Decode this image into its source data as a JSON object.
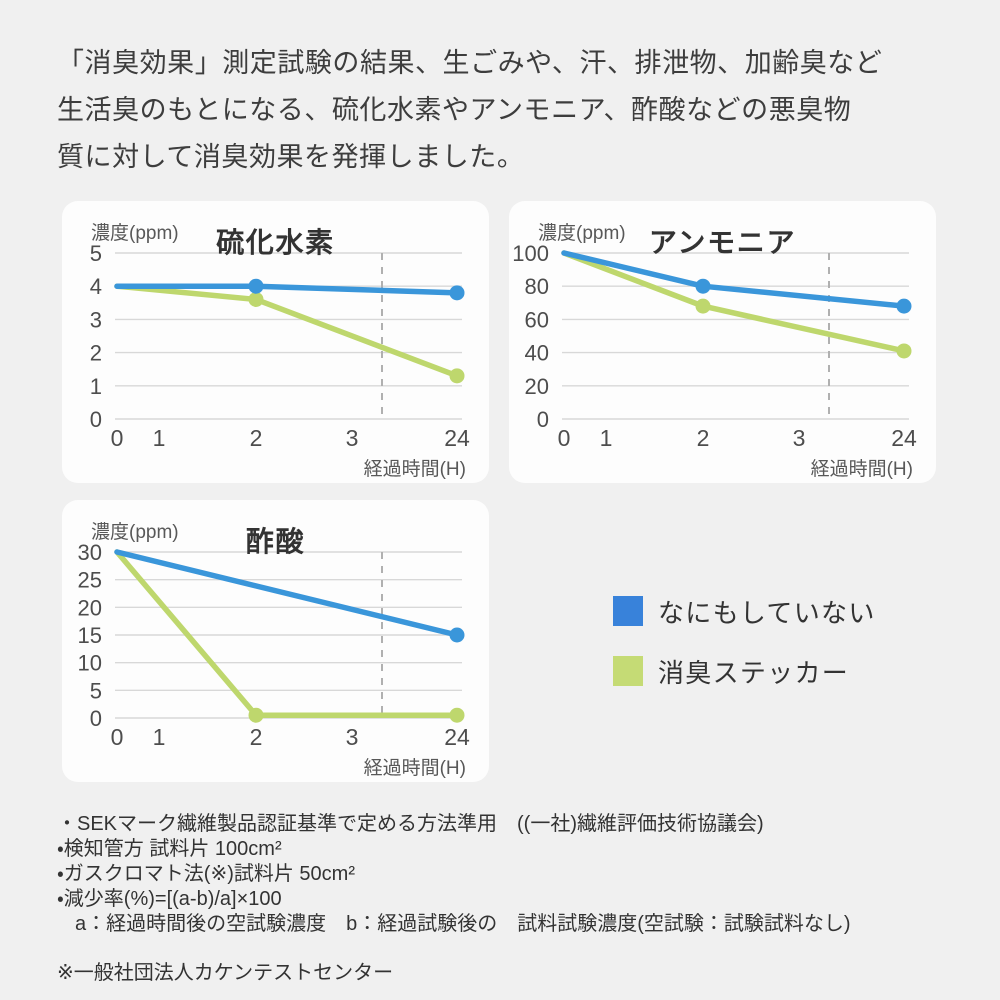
{
  "intro": {
    "lines": [
      "「消臭効果」測定試験の結果、生ごみや、汗、排泄物、加齢臭など",
      "生活臭のもとになる、硫化水素やアンモニア、酢酸などの悪臭物",
      "質に対して消臭効果を発揮しました。"
    ]
  },
  "colors": {
    "page_bg": "#f0f0f0",
    "card_bg": "#fdfdfd",
    "grid": "#d8d8d8",
    "axis_break_dash": "#b0b0b0",
    "axis_text": "#4d4d4d",
    "title_text": "#333333",
    "blue": "#3a96da",
    "green": "#bed76d"
  },
  "chart_data": [
    {
      "type": "line",
      "title": "硫化水素",
      "ylabel": "濃度(ppm)",
      "xlabel": "経過時間(H)",
      "x_tick_labels": [
        "0",
        "1",
        "2",
        "3",
        "24"
      ],
      "y_ticks": [
        "5",
        "4",
        "3",
        "2",
        "1",
        "0"
      ],
      "ylim": [
        0,
        5
      ],
      "grid": true,
      "axis_break_between": [
        "3",
        "24"
      ],
      "series": [
        {
          "name": "なにもしていない",
          "color": "#3a96da",
          "x": [
            0,
            2,
            24
          ],
          "values": [
            4,
            4,
            3.8
          ]
        },
        {
          "name": "消臭ステッカー",
          "color": "#bed76d",
          "x": [
            0,
            2,
            24
          ],
          "values": [
            4,
            3.6,
            1.3
          ]
        }
      ]
    },
    {
      "type": "line",
      "title": "アンモニア",
      "ylabel": "濃度(ppm)",
      "xlabel": "経過時間(H)",
      "x_tick_labels": [
        "0",
        "1",
        "2",
        "3",
        "24"
      ],
      "y_ticks": [
        "100",
        "80",
        "60",
        "40",
        "20",
        "0"
      ],
      "ylim": [
        0,
        100
      ],
      "grid": true,
      "axis_break_between": [
        "3",
        "24"
      ],
      "series": [
        {
          "name": "なにもしていない",
          "color": "#3a96da",
          "x": [
            0,
            2,
            24
          ],
          "values": [
            100,
            80,
            68
          ]
        },
        {
          "name": "消臭ステッカー",
          "color": "#bed76d",
          "x": [
            0,
            2,
            24
          ],
          "values": [
            100,
            68,
            41
          ]
        }
      ]
    },
    {
      "type": "line",
      "title": "酢酸",
      "ylabel": "濃度(ppm)",
      "xlabel": "経過時間(H)",
      "x_tick_labels": [
        "0",
        "1",
        "2",
        "3",
        "24"
      ],
      "y_ticks": [
        "30",
        "25",
        "20",
        "15",
        "10",
        "5",
        "0"
      ],
      "ylim": [
        0,
        30
      ],
      "grid": true,
      "axis_break_between": [
        "3",
        "24"
      ],
      "series": [
        {
          "name": "なにもしていない",
          "color": "#3a96da",
          "x": [
            0,
            24
          ],
          "values": [
            30,
            15
          ]
        },
        {
          "name": "消臭ステッカー",
          "color": "#bed76d",
          "x": [
            0,
            2,
            24
          ],
          "values": [
            30,
            0.5,
            0.5
          ]
        }
      ]
    }
  ],
  "legend": {
    "items": [
      {
        "label": "なにもしていない",
        "color": "#3882da"
      },
      {
        "label": "消臭ステッカー",
        "color": "#c5db75"
      }
    ]
  },
  "footnotes": {
    "lines": [
      "・SEKマーク繊維製品認証基準で定める方法準用　((一社)繊維評価技術協議会)",
      "・検知管方 試料片 100cm²",
      "・ガスクロマト法(※)試料片 50cm²",
      "・減少率(%)=[(a-b)/a]×100",
      "a：経過時間後の空試験濃度　b：経過試験後の　試料試験濃度(空試験：試験試料なし)"
    ],
    "agency_note": "※一般社団法人カケンテストセンター"
  }
}
